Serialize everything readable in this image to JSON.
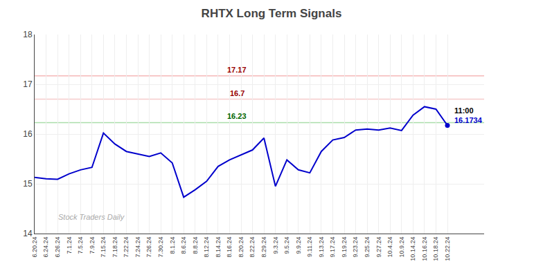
{
  "chart_data": {
    "type": "line",
    "title": "RHTX Long Term Signals",
    "color": "#0000cc",
    "categories": [
      "6.20.24",
      "6.24.24",
      "6.26.24",
      "7.1.24",
      "7.5.24",
      "7.9.24",
      "7.15.24",
      "7.18.24",
      "7.22.24",
      "7.24.24",
      "7.26.24",
      "7.30.24",
      "8.1.24",
      "8.6.24",
      "8.8.24",
      "8.12.24",
      "8.14.24",
      "8.16.24",
      "8.20.24",
      "8.22.24",
      "8.29.24",
      "9.3.24",
      "9.5.24",
      "9.9.24",
      "9.11.24",
      "9.13.24",
      "9.17.24",
      "9.19.24",
      "9.23.24",
      "9.25.24",
      "9.27.24",
      "10.4.24",
      "10.9.24",
      "10.14.24",
      "10.16.24",
      "10.18.24",
      "10.22.24"
    ],
    "values": [
      15.13,
      15.1,
      15.09,
      15.2,
      15.28,
      15.33,
      16.02,
      15.8,
      15.65,
      15.6,
      15.55,
      15.62,
      15.42,
      14.73,
      14.88,
      15.05,
      15.35,
      15.48,
      15.58,
      15.68,
      15.92,
      14.95,
      15.48,
      15.28,
      15.22,
      15.65,
      15.88,
      15.93,
      16.08,
      16.1,
      16.08,
      16.12,
      16.07,
      16.38,
      16.55,
      16.5,
      16.1734
    ],
    "ylim": [
      14,
      18
    ],
    "yticks": [
      14,
      15,
      16,
      17,
      18
    ],
    "grid": true,
    "reference_lines": [
      {
        "value": 17.17,
        "label": "17.17",
        "color": "#f5b8b8",
        "label_color": "#990000"
      },
      {
        "value": 16.7,
        "label": "16.7",
        "color": "#f5cccc",
        "label_color": "#990000"
      },
      {
        "value": 16.23,
        "label": "16.23",
        "color": "#aaddaa",
        "label_color": "#006600"
      }
    ],
    "annotations": [
      {
        "text": "11:00",
        "color": "#000000"
      },
      {
        "text": "16.1734",
        "color": "#0000cc"
      },
      {
        "text": "Stock Traders Daily",
        "color": "#aaaaaa"
      }
    ]
  }
}
